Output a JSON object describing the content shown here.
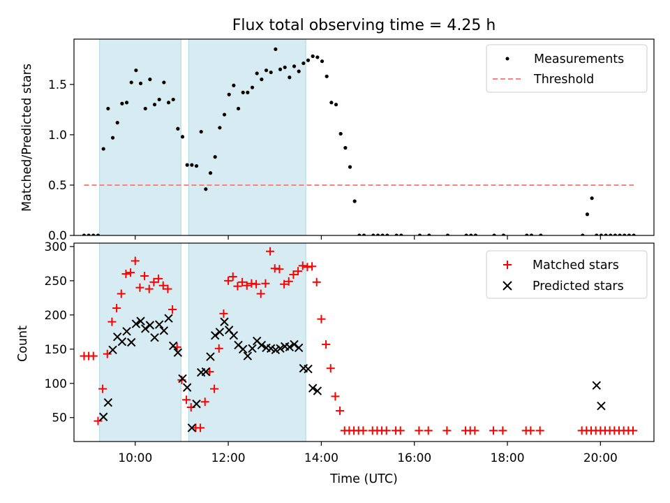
{
  "figure": {
    "title": "Flux total observing time = 4.25 h",
    "xlabel": "Time (UTC)",
    "top_ylabel": "Matched/Predicted stars",
    "bottom_ylabel": "Count"
  },
  "colors": {
    "measurements": "#000000",
    "threshold": "#ff7f7f",
    "matched": "#ff0000",
    "predicted": "#000000",
    "shade": "#add8e6"
  },
  "chart_data": [
    {
      "type": "scatter",
      "panel": "top",
      "x_axis": "time",
      "xlim": [
        "08:41",
        "21:09"
      ],
      "ylim": [
        0,
        1.95
      ],
      "yticks": [
        0.0,
        0.5,
        1.0,
        1.5
      ],
      "ytick_labels": [
        "0.0",
        "0.5",
        "1.0",
        "1.5"
      ],
      "xticks": [
        "10:00",
        "12:00",
        "14:00",
        "16:00",
        "18:00",
        "20:00"
      ],
      "shaded_intervals": [
        [
          "09:14",
          "10:59"
        ],
        [
          "11:09",
          "13:40"
        ]
      ],
      "legend_position": "upper-right",
      "series": [
        {
          "name": "Measurements",
          "kind": "points",
          "x": [
            "08:54",
            "09:00",
            "09:06",
            "09:12",
            "09:19",
            "09:25",
            "09:31",
            "09:37",
            "09:43",
            "09:49",
            "09:55",
            "10:01",
            "10:07",
            "10:13",
            "10:19",
            "10:25",
            "10:31",
            "10:37",
            "10:43",
            "10:49",
            "10:55",
            "11:01",
            "11:07",
            "11:13",
            "11:19",
            "11:25",
            "11:31",
            "11:37",
            "11:43",
            "11:49",
            "11:55",
            "12:01",
            "12:07",
            "12:13",
            "12:19",
            "12:25",
            "12:31",
            "12:37",
            "12:43",
            "12:49",
            "12:55",
            "13:01",
            "13:07",
            "13:13",
            "13:19",
            "13:25",
            "13:31",
            "13:37",
            "13:43",
            "13:49",
            "13:55",
            "14:01",
            "14:07",
            "14:13",
            "14:19",
            "14:25",
            "14:31",
            "14:37",
            "14:43",
            "14:49",
            "14:55",
            "15:07",
            "15:13",
            "15:19",
            "15:25",
            "15:37",
            "15:43",
            "16:07",
            "16:19",
            "16:43",
            "17:07",
            "17:13",
            "17:19",
            "17:43",
            "17:55",
            "18:25",
            "18:31",
            "18:43",
            "19:37",
            "19:43",
            "19:49",
            "19:55",
            "20:01",
            "20:07",
            "20:13",
            "20:19",
            "20:25",
            "20:31",
            "20:37",
            "20:43"
          ],
          "y": [
            0,
            0,
            0,
            0,
            0.86,
            1.26,
            0.97,
            1.12,
            1.31,
            1.32,
            1.52,
            1.64,
            1.51,
            1.26,
            1.55,
            1.3,
            1.35,
            1.52,
            1.32,
            1.35,
            1.06,
            0.98,
            0.7,
            0.7,
            0.69,
            1.03,
            0.46,
            0.62,
            0.78,
            1.07,
            1.2,
            1.4,
            1.49,
            1.26,
            1.42,
            1.42,
            1.47,
            1.61,
            1.55,
            1.64,
            1.62,
            1.85,
            1.65,
            1.67,
            1.57,
            1.68,
            1.63,
            1.71,
            1.74,
            1.78,
            1.77,
            1.73,
            1.58,
            1.32,
            1.3,
            1.01,
            0.87,
            0.68,
            0.34,
            0,
            0,
            0,
            0,
            0,
            0,
            0,
            0,
            0,
            0,
            0,
            0,
            0,
            0,
            0,
            0,
            0,
            0,
            0,
            0,
            0.21,
            0.37,
            0,
            0,
            0,
            0,
            0,
            0,
            0,
            0,
            0
          ]
        },
        {
          "name": "Threshold",
          "kind": "dashed-line",
          "x": [
            "08:54",
            "20:43"
          ],
          "y": [
            0.5,
            0.5
          ]
        }
      ]
    },
    {
      "type": "scatter",
      "panel": "bottom",
      "x_axis": "time",
      "xlim": [
        "08:41",
        "21:09"
      ],
      "ylim": [
        15,
        305
      ],
      "yticks": [
        50,
        100,
        150,
        200,
        250,
        300
      ],
      "ytick_labels": [
        "50",
        "100",
        "150",
        "200",
        "250",
        "300"
      ],
      "xticks": [
        "10:00",
        "12:00",
        "14:00",
        "16:00",
        "18:00",
        "20:00"
      ],
      "xtick_labels": [
        "10:00",
        "12:00",
        "14:00",
        "16:00",
        "18:00",
        "20:00"
      ],
      "shaded_intervals": [
        [
          "09:14",
          "10:59"
        ],
        [
          "11:09",
          "13:40"
        ]
      ],
      "legend_position": "upper-right",
      "series": [
        {
          "name": "Matched stars",
          "kind": "plus-markers",
          "x": [
            "08:54",
            "09:00",
            "09:06",
            "09:12",
            "09:18",
            "09:24",
            "09:30",
            "09:36",
            "09:42",
            "09:48",
            "09:54",
            "10:00",
            "10:06",
            "10:12",
            "10:18",
            "10:24",
            "10:30",
            "10:36",
            "10:42",
            "10:48",
            "10:54",
            "11:00",
            "11:06",
            "11:12",
            "11:18",
            "11:24",
            "11:30",
            "11:36",
            "11:42",
            "11:48",
            "11:54",
            "12:00",
            "12:06",
            "12:12",
            "12:18",
            "12:24",
            "12:30",
            "12:36",
            "12:42",
            "12:48",
            "12:54",
            "13:00",
            "13:06",
            "13:12",
            "13:18",
            "13:24",
            "13:30",
            "13:36",
            "13:42",
            "13:48",
            "13:54",
            "14:00",
            "14:06",
            "14:12",
            "14:18",
            "14:24",
            "14:30",
            "14:36",
            "14:42",
            "14:48",
            "14:54",
            "15:06",
            "15:12",
            "15:18",
            "15:24",
            "15:36",
            "15:42",
            "16:06",
            "16:18",
            "16:42",
            "17:06",
            "17:12",
            "17:18",
            "17:42",
            "17:54",
            "18:24",
            "18:30",
            "18:42",
            "19:36",
            "19:42",
            "19:48",
            "19:54",
            "20:00",
            "20:06",
            "20:12",
            "20:18",
            "20:24",
            "20:30",
            "20:36",
            "20:42"
          ],
          "y": [
            140,
            140,
            140,
            45,
            92,
            143,
            190,
            210,
            231,
            260,
            262,
            279,
            240,
            257,
            238,
            248,
            253,
            243,
            238,
            208,
            153,
            105,
            76,
            65,
            35,
            35,
            73,
            117,
            92,
            151,
            202,
            250,
            256,
            242,
            248,
            243,
            246,
            245,
            231,
            246,
            293,
            268,
            267,
            245,
            249,
            259,
            264,
            272,
            270,
            271,
            248,
            194,
            157,
            122,
            81,
            60,
            31,
            31,
            31,
            31,
            31,
            31,
            31,
            31,
            31,
            31,
            31,
            31,
            31,
            31,
            31,
            31,
            31,
            31,
            31,
            31,
            31,
            31,
            31,
            31,
            31,
            31,
            31,
            31,
            31,
            31,
            31,
            31,
            31,
            31
          ]
        },
        {
          "name": "Predicted stars",
          "kind": "x-markers",
          "x": [
            "09:19",
            "09:25",
            "09:31",
            "09:37",
            "09:43",
            "09:49",
            "09:55",
            "10:01",
            "10:07",
            "10:13",
            "10:19",
            "10:25",
            "10:31",
            "10:37",
            "10:43",
            "10:49",
            "10:55",
            "11:01",
            "11:07",
            "11:13",
            "11:19",
            "11:25",
            "11:31",
            "11:37",
            "11:43",
            "11:49",
            "11:55",
            "12:01",
            "12:07",
            "12:13",
            "12:19",
            "12:25",
            "12:31",
            "12:37",
            "12:43",
            "12:49",
            "12:55",
            "13:01",
            "13:07",
            "13:13",
            "13:19",
            "13:25",
            "13:31",
            "13:37",
            "13:43",
            "13:49",
            "13:55",
            "19:55",
            "20:01"
          ],
          "y": [
            51,
            72,
            149,
            168,
            161,
            176,
            160,
            187,
            191,
            180,
            185,
            167,
            186,
            177,
            195,
            155,
            145,
            107,
            94,
            35,
            70,
            116,
            117,
            139,
            170,
            175,
            190,
            178,
            170,
            156,
            150,
            140,
            151,
            162,
            156,
            152,
            151,
            149,
            151,
            154,
            153,
            157,
            152,
            122,
            121,
            93,
            89,
            97,
            67
          ]
        }
      ]
    }
  ]
}
